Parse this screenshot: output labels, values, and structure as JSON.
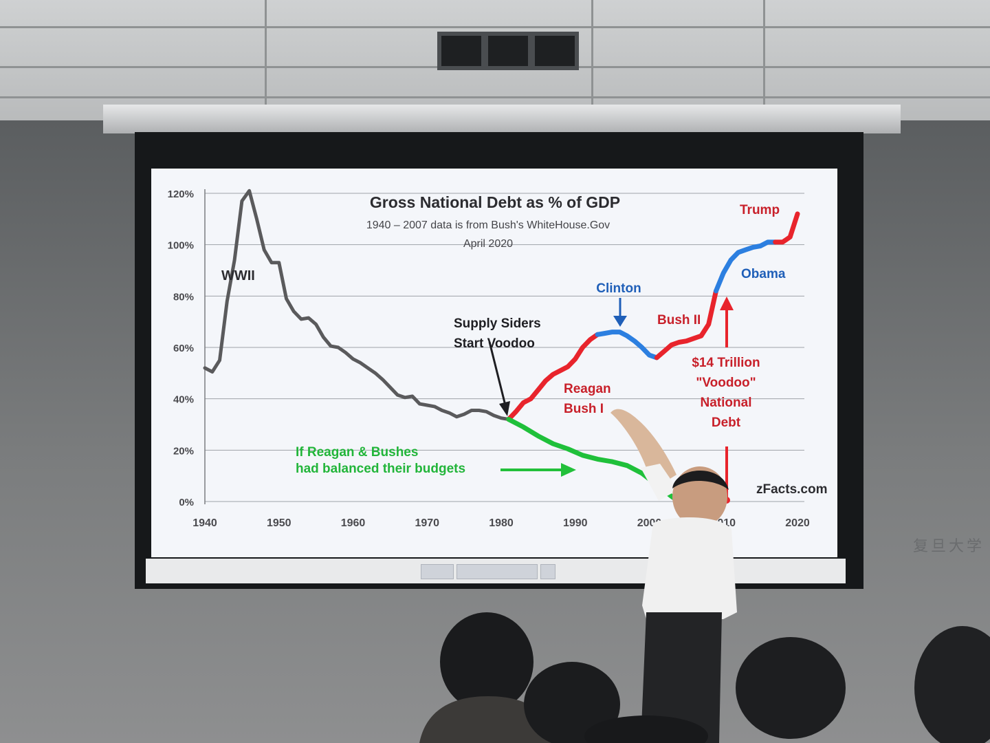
{
  "chart_data": {
    "type": "line",
    "title": "Gross National Debt  as % of GDP",
    "subtitle_lines": [
      "1940 – 2007 data is from Bush's WhiteHouse.Gov",
      "April 2020"
    ],
    "x_ticks": [
      "1940",
      "1950",
      "1960",
      "1970",
      "1980",
      "1990",
      "2000",
      "2010",
      "2020"
    ],
    "y_ticks": [
      "0%",
      "20%",
      "40%",
      "60%",
      "80%",
      "100%",
      "120%"
    ],
    "xlim": [
      1940,
      2020
    ],
    "ylim": [
      0,
      120
    ],
    "grid": true,
    "colors": {
      "truman_era": "#5a5a5c",
      "republican": "#e8242c",
      "democrat": "#2c7fe0",
      "balanced": "#1fc03a",
      "annotation_red": "#c8202a",
      "annotation_blue": "#1f5fb8"
    },
    "series": [
      {
        "color_key": "truman_era",
        "points": [
          [
            1940,
            52
          ],
          [
            1941,
            50.5
          ],
          [
            1942,
            55
          ],
          [
            1943,
            78
          ],
          [
            1944,
            94
          ],
          [
            1945,
            117
          ],
          [
            1946,
            121
          ],
          [
            1947,
            110
          ],
          [
            1948,
            98
          ],
          [
            1949,
            93
          ],
          [
            1950,
            93
          ],
          [
            1951,
            79
          ],
          [
            1952,
            74
          ],
          [
            1953,
            71
          ],
          [
            1954,
            71.5
          ],
          [
            1955,
            69
          ],
          [
            1956,
            64
          ],
          [
            1957,
            60.5
          ],
          [
            1958,
            60
          ],
          [
            1959,
            58
          ],
          [
            1960,
            55.5
          ],
          [
            1961,
            54
          ],
          [
            1962,
            52
          ],
          [
            1963,
            50
          ],
          [
            1964,
            47.5
          ],
          [
            1965,
            44.5
          ],
          [
            1966,
            41.5
          ],
          [
            1967,
            40.5
          ],
          [
            1968,
            41
          ],
          [
            1969,
            38
          ],
          [
            1970,
            37.5
          ],
          [
            1971,
            37
          ],
          [
            1972,
            35.5
          ],
          [
            1973,
            34.5
          ],
          [
            1974,
            33
          ],
          [
            1975,
            34
          ],
          [
            1976,
            35.5
          ],
          [
            1977,
            35.5
          ],
          [
            1978,
            35
          ],
          [
            1979,
            33.5
          ],
          [
            1980,
            32.5
          ],
          [
            1981,
            32
          ]
        ]
      },
      {
        "color_key": "republican",
        "points": [
          [
            1981,
            32
          ],
          [
            1982,
            35
          ],
          [
            1983,
            38.5
          ],
          [
            1984,
            40
          ],
          [
            1985,
            43.5
          ],
          [
            1986,
            47
          ],
          [
            1987,
            49.5
          ],
          [
            1988,
            51
          ],
          [
            1989,
            52.5
          ],
          [
            1990,
            55.5
          ],
          [
            1991,
            60
          ],
          [
            1992,
            63
          ],
          [
            1993,
            65
          ]
        ]
      },
      {
        "color_key": "democrat",
        "points": [
          [
            1993,
            65
          ],
          [
            1994,
            65.5
          ],
          [
            1995,
            66
          ],
          [
            1996,
            66
          ],
          [
            1997,
            64.5
          ],
          [
            1998,
            62.5
          ],
          [
            1999,
            60
          ],
          [
            2000,
            57
          ],
          [
            2001,
            56
          ]
        ]
      },
      {
        "color_key": "republican",
        "points": [
          [
            2001,
            56
          ],
          [
            2002,
            58.5
          ],
          [
            2003,
            61
          ],
          [
            2004,
            62
          ],
          [
            2005,
            62.5
          ],
          [
            2006,
            63.5
          ],
          [
            2007,
            64.5
          ],
          [
            2008,
            69
          ],
          [
            2009,
            82
          ]
        ]
      },
      {
        "color_key": "democrat",
        "points": [
          [
            2009,
            82
          ],
          [
            2010,
            89
          ],
          [
            2011,
            94
          ],
          [
            2012,
            97
          ],
          [
            2013,
            98
          ],
          [
            2014,
            99
          ],
          [
            2015,
            99.5
          ],
          [
            2016,
            101
          ],
          [
            2017,
            101
          ]
        ]
      },
      {
        "color_key": "republican",
        "points": [
          [
            2017,
            101
          ],
          [
            2018,
            101
          ],
          [
            2019,
            103
          ],
          [
            2020,
            112
          ]
        ]
      },
      {
        "color_key": "balanced",
        "points": [
          [
            1981,
            32
          ],
          [
            1983,
            29
          ],
          [
            1985,
            25.5
          ],
          [
            1987,
            22.5
          ],
          [
            1989,
            20.5
          ],
          [
            1991,
            18
          ],
          [
            1993,
            16.5
          ],
          [
            1995,
            15.5
          ],
          [
            1997,
            14
          ],
          [
            1999,
            11
          ],
          [
            2001,
            6.5
          ],
          [
            2003,
            2
          ],
          [
            2004,
            0
          ]
        ]
      }
    ],
    "annotations": {
      "wwii": "WWII",
      "supply_1": "Supply Siders",
      "supply_2": "Start Voodoo",
      "clinton": "Clinton",
      "bush2": "Bush II",
      "obama": "Obama",
      "trump": "Trump",
      "reagan": "Reagan",
      "bush": "Bush I",
      "voodoo_1": "$14 Trillion",
      "voodoo_2": "\"Voodoo\"",
      "voodoo_3": "National",
      "voodoo_4": "Debt",
      "balanced_1": "If Reagan  & Bushes",
      "balanced_2": "had balanced  their budgets",
      "source": "zFacts.com"
    }
  },
  "room": {
    "wall_stamp": "复旦大学"
  }
}
